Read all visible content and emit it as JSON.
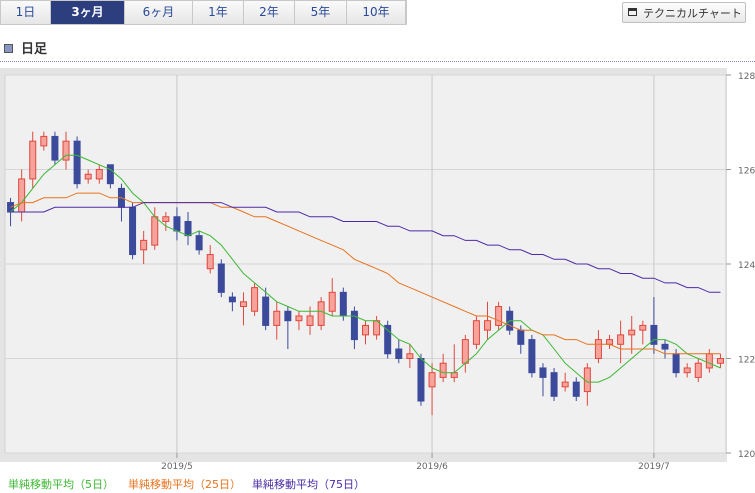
{
  "tabs": [
    "1日",
    "3ヶ月",
    "6ヶ月",
    "1年",
    "2年",
    "5年",
    "10年"
  ],
  "selected_tab": 1,
  "technical_button": "テクニカルチャート",
  "section_title": "日足",
  "chart_data": {
    "type": "candlestick",
    "categories": [
      null,
      null,
      null,
      null,
      null,
      null,
      null,
      null,
      null,
      null,
      null,
      null,
      null,
      null,
      null,
      "2019/5",
      null,
      null,
      null,
      null,
      null,
      null,
      null,
      null,
      null,
      null,
      null,
      null,
      null,
      null,
      null,
      null,
      null,
      null,
      null,
      null,
      null,
      null,
      "2019/6",
      null,
      null,
      null,
      null,
      null,
      null,
      null,
      null,
      null,
      null,
      null,
      null,
      null,
      null,
      null,
      null,
      null,
      null,
      null,
      "2019/7",
      null,
      null,
      null,
      null,
      null,
      null
    ],
    "open": [
      125.3,
      125.1,
      125.8,
      126.5,
      126.7,
      126.2,
      126.6,
      125.8,
      125.8,
      126.1,
      125.6,
      125.2,
      124.3,
      124.4,
      124.9,
      125.0,
      124.9,
      124.6,
      123.9,
      124.0,
      123.3,
      123.1,
      123.0,
      123.3,
      122.7,
      123.0,
      122.8,
      122.7,
      122.7,
      123.0,
      123.4,
      123.0,
      122.5,
      122.5,
      122.7,
      122.2,
      122.0,
      122.0,
      121.4,
      121.6,
      121.6,
      121.9,
      122.3,
      122.6,
      122.7,
      123.0,
      122.6,
      122.4,
      121.8,
      121.7,
      121.4,
      121.5,
      121.3,
      122.0,
      122.3,
      122.3,
      122.5,
      122.6,
      122.7,
      122.3,
      122.1,
      121.7,
      121.6,
      121.8,
      121.9
    ],
    "high": [
      125.4,
      126.0,
      126.8,
      126.8,
      126.8,
      126.8,
      126.7,
      126.0,
      126.1,
      126.1,
      125.7,
      125.3,
      124.7,
      125.2,
      125.1,
      125.2,
      125.1,
      124.7,
      124.4,
      124.1,
      123.4,
      123.4,
      123.6,
      123.5,
      123.2,
      123.1,
      123.0,
      123.1,
      123.3,
      123.7,
      123.5,
      123.1,
      122.8,
      122.9,
      122.8,
      122.4,
      122.3,
      122.1,
      121.9,
      122.1,
      122.3,
      122.5,
      122.9,
      123.2,
      123.2,
      123.1,
      122.7,
      122.5,
      121.9,
      121.8,
      121.7,
      121.6,
      121.9,
      122.6,
      122.5,
      122.8,
      122.9,
      122.8,
      123.3,
      122.4,
      122.2,
      121.9,
      122.0,
      122.2,
      122.1
    ],
    "low": [
      124.8,
      124.9,
      125.6,
      126.4,
      126.1,
      126.0,
      125.6,
      125.7,
      125.7,
      125.6,
      124.9,
      124.1,
      124.0,
      124.3,
      124.7,
      124.5,
      124.4,
      124.2,
      123.8,
      123.3,
      123.0,
      122.7,
      122.9,
      122.6,
      122.4,
      122.2,
      122.6,
      122.5,
      122.6,
      122.9,
      122.8,
      122.2,
      122.3,
      122.4,
      122.0,
      121.9,
      121.8,
      121.0,
      120.8,
      121.5,
      121.5,
      121.7,
      122.2,
      122.4,
      122.6,
      122.5,
      122.1,
      121.6,
      121.2,
      121.1,
      121.3,
      121.1,
      121.0,
      121.9,
      122.2,
      121.9,
      122.1,
      122.3,
      122.1,
      122.0,
      121.6,
      121.6,
      121.5,
      121.7,
      121.8
    ],
    "close": [
      125.1,
      125.8,
      126.6,
      126.7,
      126.2,
      126.6,
      125.7,
      125.9,
      126.0,
      125.7,
      125.2,
      124.2,
      124.5,
      125.0,
      125.0,
      124.7,
      124.6,
      124.3,
      124.2,
      123.4,
      123.2,
      123.2,
      123.5,
      122.7,
      123.0,
      122.8,
      122.9,
      122.9,
      123.2,
      123.4,
      122.9,
      122.4,
      122.7,
      122.8,
      122.1,
      122.0,
      122.1,
      121.1,
      121.7,
      121.9,
      121.7,
      122.4,
      122.8,
      122.8,
      123.1,
      122.6,
      122.3,
      121.7,
      121.6,
      121.2,
      121.5,
      121.2,
      121.8,
      122.4,
      122.4,
      122.5,
      122.6,
      122.7,
      122.3,
      122.2,
      121.7,
      121.8,
      121.9,
      122.1,
      122.0
    ],
    "up_color": "#e0483e",
    "down_color": "#3c4a9c",
    "series": [
      {
        "name": "単純移動平均（5日）",
        "color": "#3cb832",
        "values": [
          125.1,
          125.3,
          125.6,
          125.9,
          126.1,
          126.3,
          126.3,
          126.2,
          126.1,
          126.0,
          125.8,
          125.5,
          125.3,
          125.0,
          124.8,
          124.7,
          124.6,
          124.7,
          124.6,
          124.4,
          124.1,
          123.8,
          123.6,
          123.4,
          123.2,
          123.1,
          123.0,
          123.0,
          123.0,
          122.9,
          122.9,
          122.9,
          122.8,
          122.8,
          122.6,
          122.4,
          122.3,
          122.0,
          121.8,
          121.7,
          121.7,
          121.9,
          122.1,
          122.4,
          122.6,
          122.8,
          122.8,
          122.6,
          122.5,
          122.2,
          121.9,
          121.7,
          121.5,
          121.5,
          121.6,
          121.8,
          122.0,
          122.2,
          122.4,
          122.4,
          122.3,
          122.1,
          122.0,
          121.9,
          121.8
        ]
      },
      {
        "name": "単純移動平均（25日）",
        "color": "#e8731e",
        "values": [
          125.2,
          125.3,
          125.3,
          125.4,
          125.4,
          125.4,
          125.5,
          125.5,
          125.5,
          125.4,
          125.4,
          125.3,
          125.3,
          125.3,
          125.3,
          125.3,
          125.3,
          125.3,
          125.3,
          125.2,
          125.2,
          125.1,
          125.0,
          125.0,
          124.9,
          124.8,
          124.7,
          124.6,
          124.5,
          124.4,
          124.3,
          124.1,
          124.0,
          123.9,
          123.8,
          123.6,
          123.5,
          123.4,
          123.3,
          123.2,
          123.1,
          123.0,
          122.9,
          122.9,
          122.8,
          122.7,
          122.6,
          122.6,
          122.5,
          122.5,
          122.4,
          122.4,
          122.3,
          122.3,
          122.3,
          122.2,
          122.2,
          122.2,
          122.2,
          122.1,
          122.1,
          122.1,
          122.1,
          122.1,
          122.1
        ]
      },
      {
        "name": "単純移動平均（75日）",
        "color": "#4b2aa6",
        "values": [
          125.1,
          125.1,
          125.1,
          125.1,
          125.2,
          125.2,
          125.2,
          125.2,
          125.2,
          125.2,
          125.2,
          125.2,
          125.3,
          125.3,
          125.3,
          125.3,
          125.3,
          125.3,
          125.3,
          125.3,
          125.2,
          125.2,
          125.2,
          125.2,
          125.1,
          125.1,
          125.1,
          125.0,
          125.0,
          125.0,
          124.9,
          124.9,
          124.9,
          124.9,
          124.8,
          124.8,
          124.7,
          124.7,
          124.7,
          124.6,
          124.6,
          124.5,
          124.5,
          124.4,
          124.4,
          124.3,
          124.3,
          124.2,
          124.2,
          124.1,
          124.1,
          124.0,
          124.0,
          123.9,
          123.9,
          123.8,
          123.8,
          123.7,
          123.7,
          123.6,
          123.6,
          123.5,
          123.5,
          123.4,
          123.4
        ]
      }
    ],
    "ylim": [
      120,
      128
    ],
    "yticks": [
      120,
      122,
      124,
      126,
      128
    ],
    "grid": true
  }
}
